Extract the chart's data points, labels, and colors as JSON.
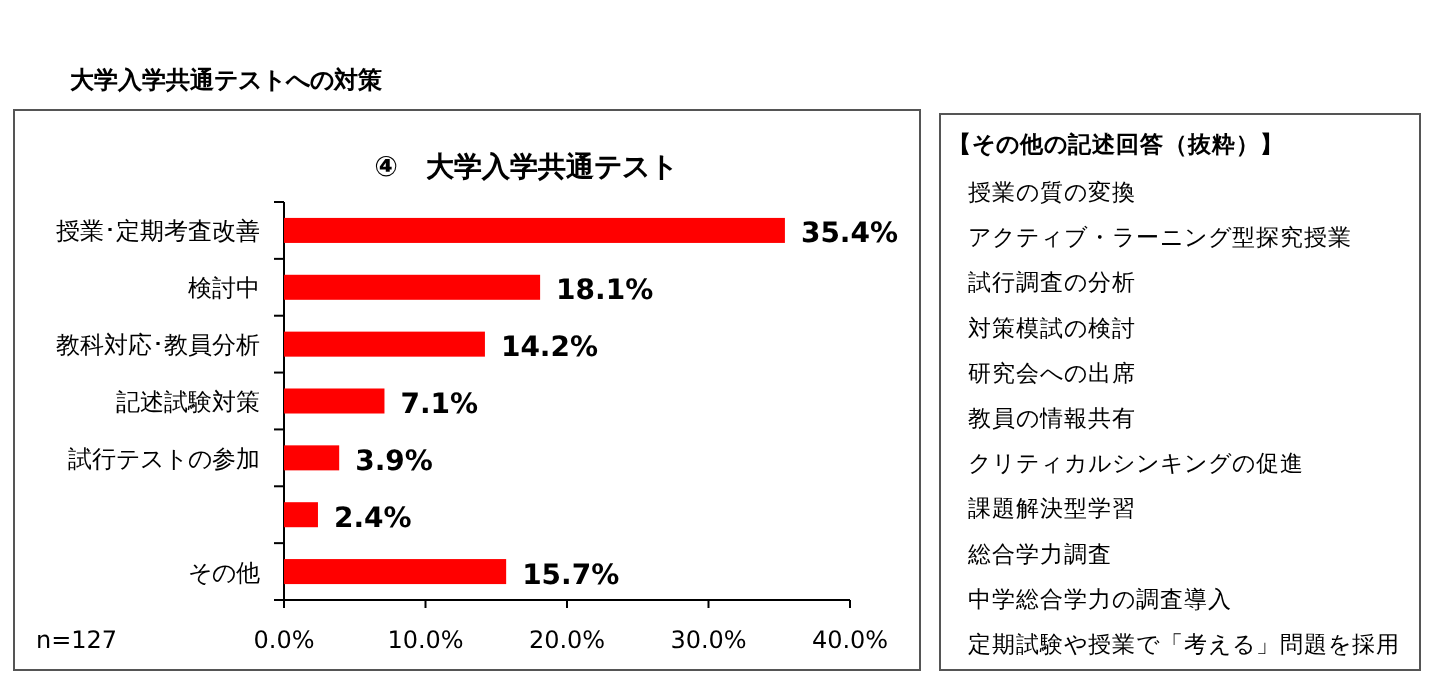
{
  "chart_data": [
    {
      "type": "bar",
      "orientation": "horizontal",
      "title": "大学入学共通テストへの対策",
      "subtitle": "④　大学入学共通テスト",
      "categories": [
        "授業･定期考査改善",
        "検討中",
        "教科対応･教員分析",
        "記述試験対策",
        "試行テストの参加",
        null,
        "その他"
      ],
      "values": [
        35.4,
        18.1,
        14.2,
        7.1,
        3.9,
        2.4,
        15.7
      ],
      "value_labels": [
        "35.4%",
        "18.1%",
        "14.2%",
        "7.1%",
        "3.9%",
        "2.4%",
        "15.7%"
      ],
      "color": "#ff0000",
      "xlim": [
        0,
        40
      ],
      "xticks": [
        {
          "value": 0,
          "label": "0.0%"
        },
        {
          "value": 10,
          "label": "10.0%"
        },
        {
          "value": 20,
          "label": "20.0%"
        },
        {
          "value": 30,
          "label": "30.0%"
        },
        {
          "value": 40,
          "label": "40.0%"
        }
      ],
      "grid": false,
      "annotations": [
        "n=127"
      ]
    },
    {
      "type": "other",
      "title": "【その他の記述回答（抜粋）】",
      "annotations": [
        "授業の質の変換",
        "アクティブ・ラーニング型探究授業",
        "試行調査の分析",
        "対策模試の検討",
        "研究会への出席",
        "教員の情報共有",
        "クリティカルシンキングの促進",
        "課題解決型学習",
        "総合学力調査",
        "中学総合学力の調査導入",
        "定期試験や授業で「考える」問題を採用"
      ]
    }
  ]
}
